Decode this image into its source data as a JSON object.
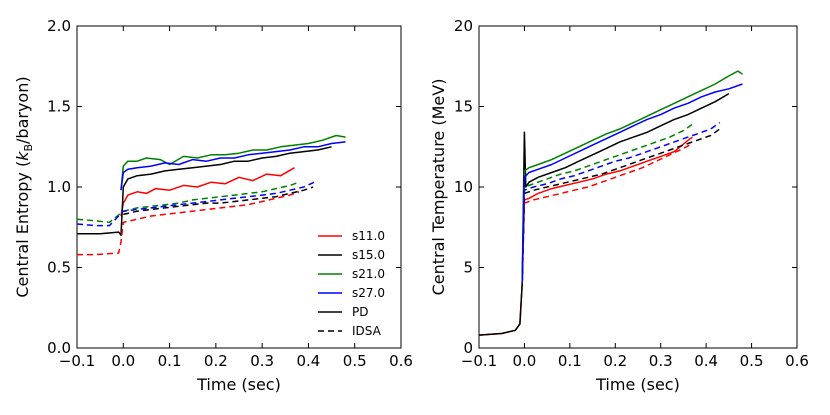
{
  "chart_data": [
    {
      "type": "line",
      "id": "entropy",
      "xlabel": "Time (sec)",
      "ylabel": "Central Entropy (k_B/baryon)",
      "ylabel_prefix": "Central Entropy (",
      "ylabel_k": "k",
      "ylabel_sub": "B",
      "ylabel_suffix": "/baryon)",
      "xlim": [
        -0.1,
        0.6
      ],
      "ylim": [
        0.0,
        2.0
      ],
      "xticks": [
        -0.1,
        0.0,
        0.1,
        0.2,
        0.3,
        0.4,
        0.5,
        0.6
      ],
      "xtick_labels": [
        "−0.1",
        "0.0",
        "0.1",
        "0.2",
        "0.3",
        "0.4",
        "0.5",
        "0.6"
      ],
      "yticks": [
        0.0,
        0.5,
        1.0,
        1.5,
        2.0
      ],
      "ytick_labels": [
        "0.0",
        "0.5",
        "1.0",
        "1.5",
        "2.0"
      ],
      "legend": {
        "position": "lower-right",
        "entries": [
          {
            "label": "s11.0",
            "color": "#ff0000",
            "style": "solid"
          },
          {
            "label": "s15.0",
            "color": "#000000",
            "style": "solid"
          },
          {
            "label": "s21.0",
            "color": "#008000",
            "style": "solid"
          },
          {
            "label": "s27.0",
            "color": "#0000ff",
            "style": "solid"
          },
          {
            "label": "PD",
            "color": "#000000",
            "style": "solid"
          },
          {
            "label": "IDSA",
            "color": "#000000",
            "style": "dashed"
          }
        ]
      },
      "series": [
        {
          "name": "s11.0 PD",
          "color": "#ff0000",
          "style": "solid",
          "x": [
            -0.005,
            0.0,
            0.01,
            0.03,
            0.05,
            0.07,
            0.1,
            0.13,
            0.16,
            0.19,
            0.22,
            0.25,
            0.28,
            0.31,
            0.34,
            0.37
          ],
          "y": [
            0.82,
            0.9,
            0.95,
            0.97,
            0.96,
            0.99,
            0.98,
            1.01,
            1.0,
            1.03,
            1.02,
            1.06,
            1.04,
            1.08,
            1.07,
            1.12
          ]
        },
        {
          "name": "s15.0 PD",
          "color": "#000000",
          "style": "solid",
          "x": [
            -0.1,
            -0.05,
            -0.01,
            -0.005,
            0.0,
            0.01,
            0.03,
            0.06,
            0.09,
            0.12,
            0.15,
            0.18,
            0.21,
            0.24,
            0.27,
            0.3,
            0.33,
            0.36,
            0.39,
            0.42,
            0.45
          ],
          "y": [
            0.71,
            0.71,
            0.72,
            0.7,
            1.0,
            1.05,
            1.07,
            1.08,
            1.1,
            1.11,
            1.12,
            1.13,
            1.14,
            1.16,
            1.16,
            1.18,
            1.19,
            1.21,
            1.22,
            1.23,
            1.25
          ]
        },
        {
          "name": "s21.0 PD",
          "color": "#008000",
          "style": "solid",
          "x": [
            -0.005,
            0.0,
            0.01,
            0.03,
            0.05,
            0.08,
            0.1,
            0.13,
            0.16,
            0.19,
            0.22,
            0.25,
            0.28,
            0.31,
            0.34,
            0.37,
            0.4,
            0.43,
            0.46,
            0.48
          ],
          "y": [
            0.98,
            1.13,
            1.16,
            1.16,
            1.18,
            1.17,
            1.14,
            1.19,
            1.18,
            1.2,
            1.2,
            1.21,
            1.23,
            1.23,
            1.25,
            1.26,
            1.27,
            1.29,
            1.32,
            1.31
          ]
        },
        {
          "name": "s27.0 PD",
          "color": "#0000ff",
          "style": "solid",
          "x": [
            -0.005,
            0.0,
            0.01,
            0.03,
            0.06,
            0.09,
            0.12,
            0.15,
            0.18,
            0.21,
            0.24,
            0.27,
            0.3,
            0.33,
            0.36,
            0.39,
            0.42,
            0.45,
            0.48
          ],
          "y": [
            0.98,
            1.09,
            1.11,
            1.12,
            1.13,
            1.15,
            1.14,
            1.17,
            1.16,
            1.18,
            1.18,
            1.2,
            1.21,
            1.22,
            1.23,
            1.25,
            1.25,
            1.27,
            1.28
          ]
        },
        {
          "name": "s11.0 IDSA",
          "color": "#ff0000",
          "style": "dashed",
          "x": [
            -0.1,
            -0.06,
            -0.01,
            -0.005,
            0.0,
            0.03,
            0.06,
            0.09,
            0.12,
            0.15,
            0.18,
            0.21,
            0.24,
            0.27,
            0.3,
            0.33,
            0.36,
            0.38
          ],
          "y": [
            0.58,
            0.58,
            0.59,
            0.66,
            0.78,
            0.8,
            0.82,
            0.83,
            0.84,
            0.85,
            0.86,
            0.87,
            0.88,
            0.89,
            0.91,
            0.93,
            0.95,
            0.97
          ]
        },
        {
          "name": "s15.0 IDSA",
          "color": "#000000",
          "style": "dashed",
          "x": [
            0.0,
            0.03,
            0.06,
            0.09,
            0.12,
            0.15,
            0.18,
            0.21,
            0.24,
            0.27,
            0.3,
            0.33,
            0.36,
            0.39,
            0.41
          ],
          "y": [
            0.83,
            0.85,
            0.86,
            0.87,
            0.88,
            0.89,
            0.9,
            0.9,
            0.91,
            0.92,
            0.93,
            0.94,
            0.96,
            0.98,
            1.0
          ]
        },
        {
          "name": "s21.0 IDSA",
          "color": "#008000",
          "style": "dashed",
          "x": [
            -0.1,
            -0.06,
            -0.03,
            0.0,
            0.03,
            0.06,
            0.09,
            0.12,
            0.15,
            0.18,
            0.21,
            0.24,
            0.27,
            0.3,
            0.33,
            0.36,
            0.38
          ],
          "y": [
            0.8,
            0.79,
            0.78,
            0.85,
            0.87,
            0.88,
            0.89,
            0.9,
            0.92,
            0.93,
            0.94,
            0.95,
            0.96,
            0.97,
            0.99,
            1.01,
            1.03
          ]
        },
        {
          "name": "s27.0 IDSA",
          "color": "#0000ff",
          "style": "dashed",
          "x": [
            -0.1,
            -0.06,
            -0.03,
            0.0,
            0.03,
            0.06,
            0.09,
            0.12,
            0.15,
            0.18,
            0.21,
            0.24,
            0.27,
            0.3,
            0.33,
            0.36,
            0.39,
            0.42
          ],
          "y": [
            0.77,
            0.76,
            0.76,
            0.85,
            0.86,
            0.87,
            0.88,
            0.89,
            0.9,
            0.91,
            0.92,
            0.93,
            0.94,
            0.95,
            0.96,
            0.98,
            1.0,
            1.04
          ]
        }
      ]
    },
    {
      "type": "line",
      "id": "temperature",
      "xlabel": "Time (sec)",
      "ylabel": "Central Temperature (MeV)",
      "xlim": [
        -0.1,
        0.6
      ],
      "ylim": [
        0,
        20
      ],
      "xticks": [
        -0.1,
        0.0,
        0.1,
        0.2,
        0.3,
        0.4,
        0.5,
        0.6
      ],
      "xtick_labels": [
        "−0.1",
        "0.0",
        "0.1",
        "0.2",
        "0.3",
        "0.4",
        "0.5",
        "0.6"
      ],
      "yticks": [
        0,
        5,
        10,
        15,
        20
      ],
      "ytick_labels": [
        "0",
        "5",
        "10",
        "15",
        "20"
      ],
      "series": [
        {
          "name": "s11.0 PD",
          "color": "#ff0000",
          "style": "solid",
          "x": [
            -0.1,
            -0.05,
            -0.02,
            -0.01,
            -0.005,
            0.0,
            0.01,
            0.03,
            0.06,
            0.09,
            0.12,
            0.15,
            0.18,
            0.21,
            0.24,
            0.27,
            0.3,
            0.33,
            0.36,
            0.37
          ],
          "y": [
            0.8,
            0.9,
            1.1,
            1.5,
            4.0,
            9.2,
            9.3,
            9.6,
            9.9,
            10.1,
            10.3,
            10.5,
            10.8,
            11.0,
            11.3,
            11.6,
            11.9,
            12.2,
            12.9,
            13.1
          ]
        },
        {
          "name": "s15.0 PD",
          "color": "#000000",
          "style": "solid",
          "x": [
            -0.1,
            -0.05,
            -0.02,
            -0.01,
            -0.005,
            0.0,
            0.003,
            0.01,
            0.03,
            0.06,
            0.09,
            0.12,
            0.15,
            0.18,
            0.21,
            0.24,
            0.27,
            0.3,
            0.33,
            0.36,
            0.39,
            0.42,
            0.45
          ],
          "y": [
            0.8,
            0.9,
            1.1,
            1.5,
            4.0,
            13.4,
            10.0,
            10.3,
            10.6,
            10.9,
            11.2,
            11.6,
            12.0,
            12.4,
            12.8,
            13.1,
            13.4,
            13.8,
            14.2,
            14.5,
            14.9,
            15.3,
            15.8
          ]
        },
        {
          "name": "s21.0 PD",
          "color": "#008000",
          "style": "solid",
          "x": [
            -0.005,
            0.0,
            0.01,
            0.03,
            0.06,
            0.09,
            0.12,
            0.15,
            0.18,
            0.21,
            0.24,
            0.27,
            0.3,
            0.33,
            0.36,
            0.39,
            0.42,
            0.45,
            0.47,
            0.48
          ],
          "y": [
            4.0,
            11.0,
            11.2,
            11.4,
            11.7,
            12.1,
            12.5,
            12.9,
            13.3,
            13.6,
            14.0,
            14.4,
            14.8,
            15.2,
            15.6,
            16.0,
            16.4,
            16.9,
            17.2,
            17.0
          ]
        },
        {
          "name": "s27.0 PD",
          "color": "#0000ff",
          "style": "solid",
          "x": [
            -0.005,
            0.0,
            0.01,
            0.03,
            0.06,
            0.09,
            0.12,
            0.15,
            0.18,
            0.21,
            0.24,
            0.27,
            0.3,
            0.33,
            0.36,
            0.39,
            0.42,
            0.45,
            0.48
          ],
          "y": [
            4.0,
            10.6,
            10.9,
            11.1,
            11.4,
            11.8,
            12.2,
            12.6,
            13.0,
            13.4,
            13.8,
            14.2,
            14.5,
            14.9,
            15.2,
            15.6,
            15.9,
            16.1,
            16.4
          ]
        },
        {
          "name": "s11.0 IDSA",
          "color": "#ff0000",
          "style": "dashed",
          "x": [
            -0.005,
            0.0,
            0.02,
            0.05,
            0.08,
            0.11,
            0.14,
            0.17,
            0.2,
            0.23,
            0.26,
            0.29,
            0.32,
            0.35,
            0.37
          ],
          "y": [
            4.0,
            9.0,
            9.2,
            9.4,
            9.6,
            9.8,
            10.0,
            10.3,
            10.6,
            10.9,
            11.2,
            11.6,
            12.0,
            12.4,
            12.7
          ]
        },
        {
          "name": "s15.0 IDSA",
          "color": "#000000",
          "style": "dashed",
          "x": [
            -0.005,
            0.0,
            0.02,
            0.05,
            0.08,
            0.11,
            0.14,
            0.17,
            0.2,
            0.23,
            0.26,
            0.29,
            0.32,
            0.35,
            0.38,
            0.41,
            0.43
          ],
          "y": [
            4.0,
            9.6,
            9.8,
            10.0,
            10.2,
            10.4,
            10.6,
            10.8,
            11.1,
            11.4,
            11.7,
            12.0,
            12.3,
            12.6,
            12.9,
            13.2,
            13.6
          ]
        },
        {
          "name": "s21.0 IDSA",
          "color": "#008000",
          "style": "dashed",
          "x": [
            -0.005,
            0.0,
            0.02,
            0.05,
            0.08,
            0.11,
            0.14,
            0.17,
            0.2,
            0.23,
            0.26,
            0.29,
            0.32,
            0.35,
            0.37
          ],
          "y": [
            4.0,
            10.0,
            10.2,
            10.5,
            10.8,
            11.0,
            11.3,
            11.6,
            11.9,
            12.2,
            12.5,
            12.8,
            13.1,
            13.5,
            13.9
          ]
        },
        {
          "name": "s27.0 IDSA",
          "color": "#0000ff",
          "style": "dashed",
          "x": [
            -0.005,
            0.0,
            0.02,
            0.05,
            0.08,
            0.11,
            0.14,
            0.17,
            0.2,
            0.23,
            0.26,
            0.29,
            0.32,
            0.35,
            0.38,
            0.41,
            0.43
          ],
          "y": [
            4.0,
            9.8,
            10.0,
            10.2,
            10.5,
            10.7,
            11.0,
            11.3,
            11.6,
            11.8,
            12.1,
            12.4,
            12.7,
            13.0,
            13.3,
            13.6,
            14.0
          ]
        }
      ]
    }
  ]
}
